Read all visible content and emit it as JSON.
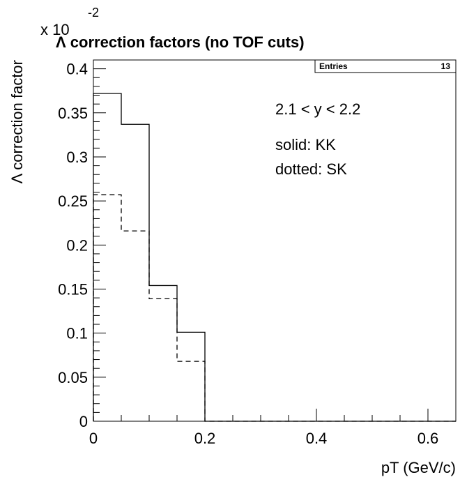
{
  "chart_data": {
    "type": "histogram",
    "title": "Λ correction factors (no TOF cuts)",
    "ylabel": "Λ correction factor",
    "xlabel": "pT (GeV/c)",
    "y_multiplier_label": "x 10",
    "y_multiplier_exponent": "-2",
    "xlim": [
      0,
      0.65
    ],
    "ylim": [
      0,
      0.41
    ],
    "x_ticks": [
      0,
      0.2,
      0.4,
      0.6
    ],
    "x_tick_labels": [
      "0",
      "0.2",
      "0.4",
      "0.6"
    ],
    "y_ticks": [
      0,
      0.05,
      0.1,
      0.15,
      0.2,
      0.25,
      0.3,
      0.35,
      0.4
    ],
    "y_tick_labels": [
      "0",
      "0.05",
      "0.1",
      "0.15",
      "0.2",
      "0.25",
      "0.3",
      "0.35",
      "0.4"
    ],
    "bin_edges": [
      0,
      0.05,
      0.1,
      0.15,
      0.2,
      0.25,
      0.3,
      0.35,
      0.4,
      0.45,
      0.5,
      0.55,
      0.6,
      0.65
    ],
    "series": [
      {
        "line_style": "solid",
        "values": [
          0.372,
          0.337,
          0.154,
          0.101,
          0,
          0,
          0,
          0,
          0,
          0,
          0,
          0,
          0
        ]
      },
      {
        "line_style": "dashed",
        "values": [
          0.257,
          0.216,
          0.139,
          0.068,
          0,
          0,
          0,
          0,
          0,
          0,
          0,
          0,
          0
        ]
      }
    ],
    "stats_box": {
      "label": "Entries",
      "value": "13"
    },
    "annotations": [
      "2.1 < y < 2.2",
      "solid: KK",
      "dotted: SK"
    ],
    "grid": false
  }
}
